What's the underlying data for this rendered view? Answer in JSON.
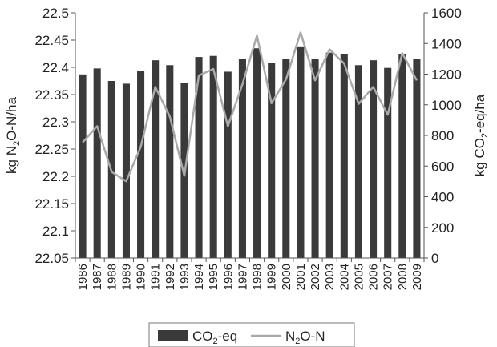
{
  "chart_data": {
    "type": "bar",
    "categories": [
      "1986",
      "1987",
      "1988",
      "1989",
      "1990",
      "1991",
      "1992",
      "1993",
      "1994",
      "1995",
      "1996",
      "1997",
      "1998",
      "1999",
      "2000",
      "2001",
      "2002",
      "2003",
      "2004",
      "2005",
      "2006",
      "2007",
      "2008",
      "2009"
    ],
    "x_tick_labels": [
      "1986",
      "1987",
      "1988",
      "1989",
      "1990",
      "1991",
      "1992",
      "1993",
      "1994",
      "1995",
      "1996",
      "1997",
      "1998",
      "1999",
      "2000",
      "2001",
      "2002",
      "2003",
      "2004",
      "2005",
      "2006",
      "2007",
      "2008",
      "2009"
    ],
    "left_axis": {
      "label_parts": [
        "kg N",
        "2",
        "O-N/ha"
      ],
      "ylim": [
        22.05,
        22.5
      ],
      "ticks": [
        "22.05",
        "22.1",
        "22.15",
        "22.2",
        "22.25",
        "22.3",
        "22.35",
        "22.4",
        "22.45",
        "22.5"
      ],
      "tick_values": [
        22.05,
        22.1,
        22.15,
        22.2,
        22.25,
        22.3,
        22.35,
        22.4,
        22.45,
        22.5
      ]
    },
    "right_axis": {
      "label_parts": [
        "kg CO",
        "2",
        "-eq/ha"
      ],
      "ylim": [
        0,
        1600
      ],
      "ticks": [
        "0",
        "200",
        "400",
        "600",
        "800",
        "1000",
        "1200",
        "1400",
        "1600"
      ],
      "tick_values": [
        0,
        200,
        400,
        600,
        800,
        1000,
        1200,
        1400,
        1600
      ]
    },
    "series": [
      {
        "name_parts": [
          "CO",
          "2",
          "-eq"
        ],
        "kind": "bar",
        "axis": "left",
        "color": "#3a3a3a",
        "values": [
          22.387,
          22.398,
          22.375,
          22.37,
          22.393,
          22.413,
          22.404,
          22.372,
          22.419,
          22.421,
          22.392,
          22.416,
          22.435,
          22.408,
          22.416,
          22.437,
          22.416,
          22.427,
          22.424,
          22.404,
          22.413,
          22.399,
          22.424,
          22.416
        ]
      },
      {
        "name_parts": [
          "N",
          "2",
          "O-N"
        ],
        "kind": "line",
        "axis": "left",
        "color": "#a9a9a9",
        "values": [
          22.262,
          22.292,
          22.208,
          22.191,
          22.254,
          22.364,
          22.31,
          22.201,
          22.385,
          22.397,
          22.292,
          22.369,
          22.458,
          22.334,
          22.378,
          22.464,
          22.376,
          22.433,
          22.407,
          22.333,
          22.364,
          22.313,
          22.426,
          22.376
        ]
      }
    ],
    "legend_position": "bottom",
    "grid": false
  }
}
